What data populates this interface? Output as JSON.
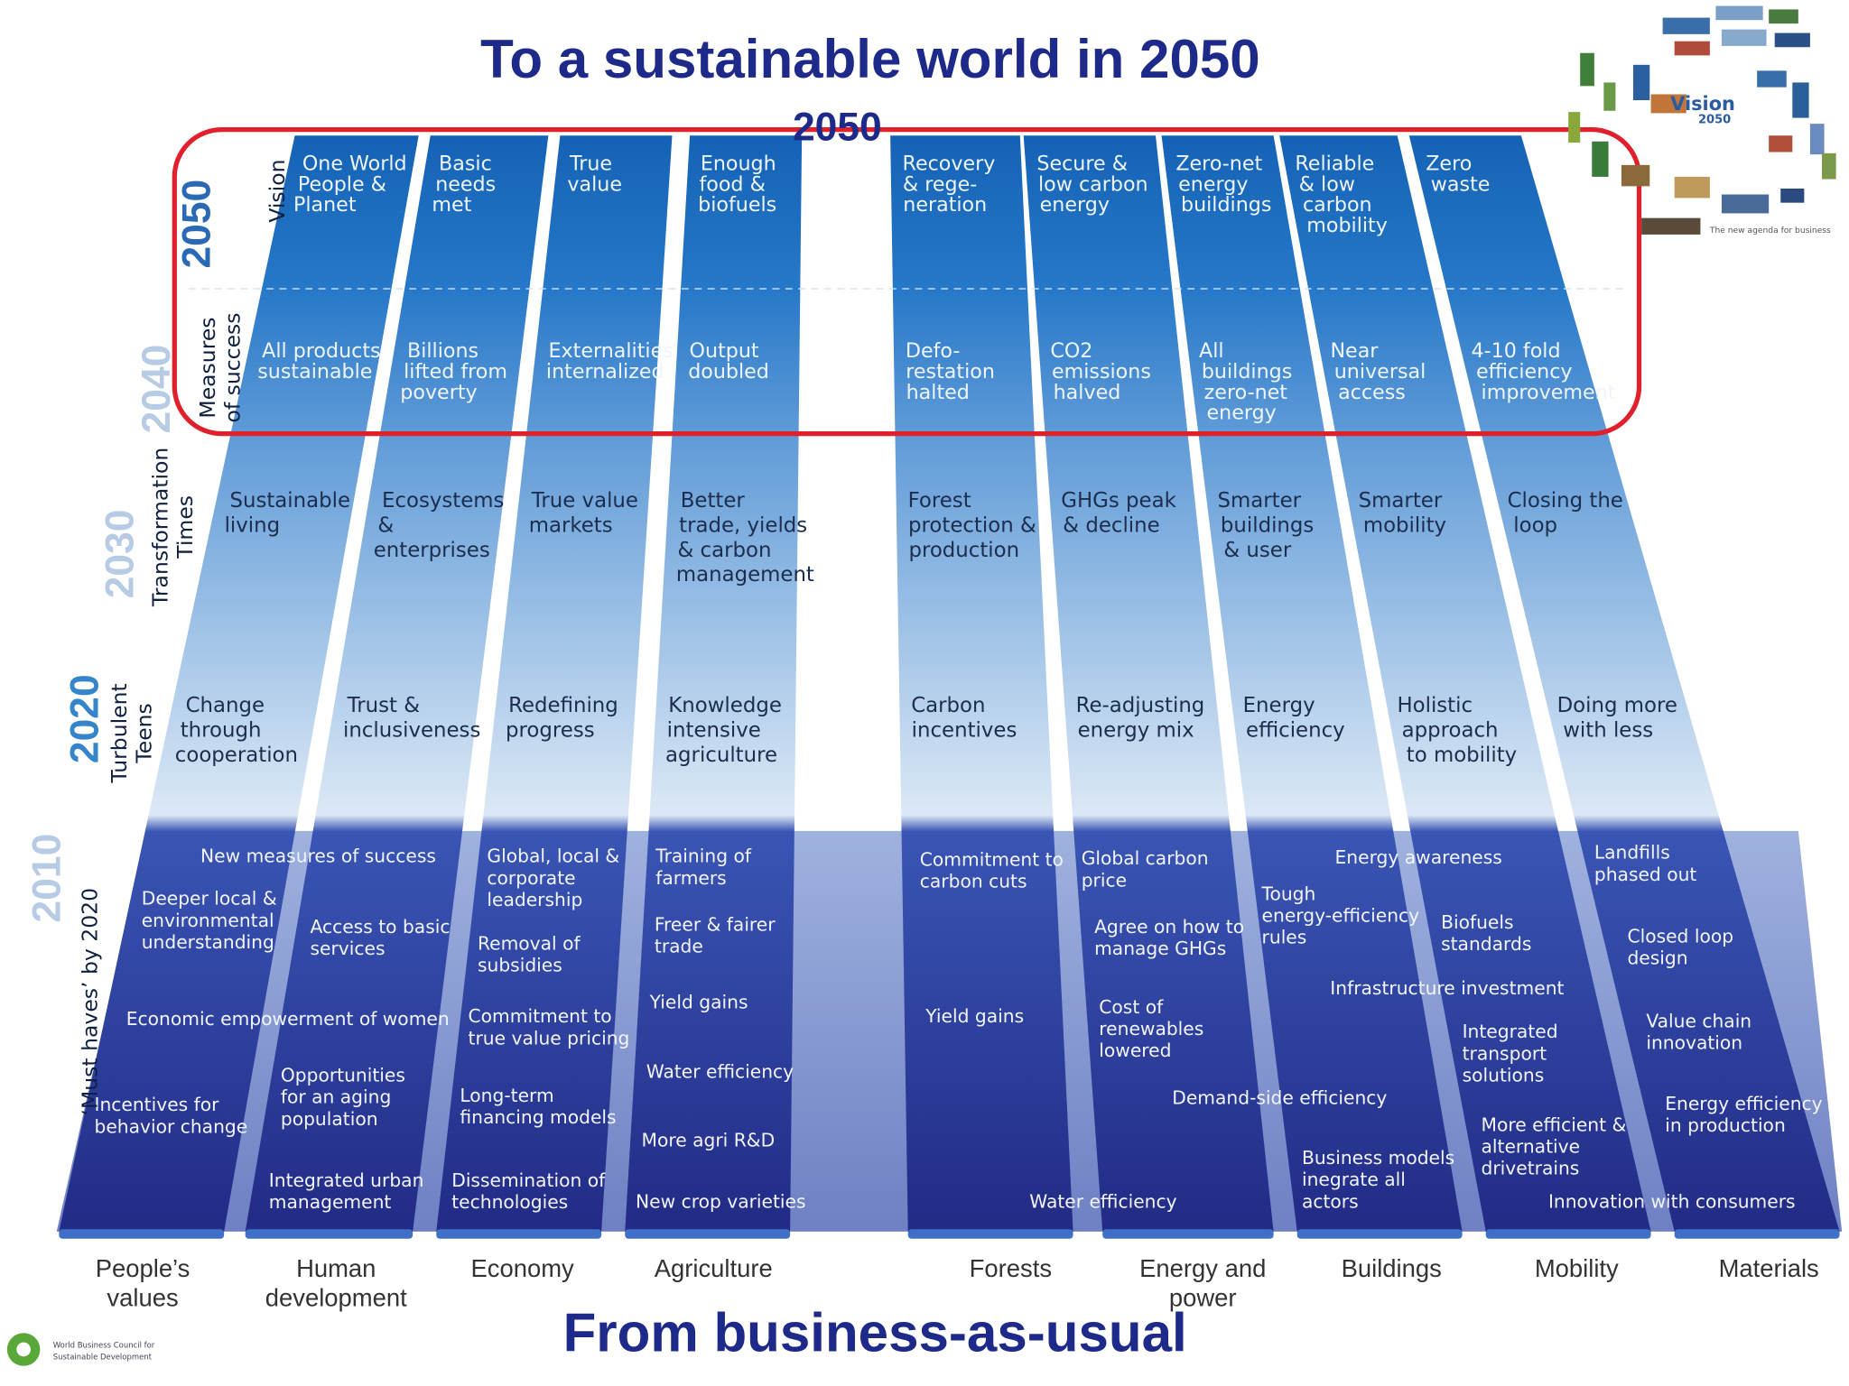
{
  "header": {
    "title": "To a sustainable world in 2050",
    "subtitle": "2050"
  },
  "footer": {
    "title": "From business-as-usual"
  },
  "logo": {
    "title": "Vision",
    "year": "2050",
    "tagline": "The new agenda for business"
  },
  "council_logo": {
    "lines": [
      "World Business Council for",
      "Sustainable Development"
    ]
  },
  "rows": [
    {
      "year": "2050",
      "label": [
        "Vision"
      ]
    },
    {
      "year": "2040",
      "label": [
        "Measures",
        "of success"
      ]
    },
    {
      "year": "2030",
      "label": [
        "Transformation",
        "Times"
      ]
    },
    {
      "year": "2020",
      "label": [
        "Turbulent",
        "Teens"
      ]
    },
    {
      "year": "2010",
      "label": [
        "‘Must haves’ by 2020"
      ]
    }
  ],
  "columns": [
    {
      "name": [
        "People’s",
        "values"
      ],
      "vision": [
        "One World",
        "People &",
        "Planet"
      ],
      "measure": [
        "All products",
        "sustainable"
      ],
      "transformation": [
        "Sustainable",
        "living"
      ],
      "teens": [
        "Change",
        "through",
        "cooperation"
      ]
    },
    {
      "name": [
        "Human",
        "development"
      ],
      "vision": [
        "Basic",
        "needs",
        "met"
      ],
      "measure": [
        "Billions",
        "lifted from",
        "poverty"
      ],
      "transformation": [
        "Ecosystems",
        "&",
        "enterprises"
      ],
      "teens": [
        "Trust &",
        "inclusiveness"
      ]
    },
    {
      "name": [
        "Economy"
      ],
      "vision": [
        "True",
        "value"
      ],
      "measure": [
        "Externalities",
        "internalized"
      ],
      "transformation": [
        "True value",
        "markets"
      ],
      "teens": [
        "Redefining",
        "progress"
      ]
    },
    {
      "name": [
        "Agriculture"
      ],
      "vision": [
        "Enough",
        "food &",
        "biofuels"
      ],
      "measure": [
        "Output",
        "doubled"
      ],
      "transformation": [
        "Better",
        "trade, yields",
        "& carbon",
        "management"
      ],
      "teens": [
        "Knowledge",
        "intensive",
        "agriculture"
      ]
    },
    {
      "name": [
        "Forests"
      ],
      "vision": [
        "Recovery",
        "& rege-",
        "neration"
      ],
      "measure": [
        "Defo-",
        "restation",
        "halted"
      ],
      "transformation": [
        "Forest",
        "protection &",
        "production"
      ],
      "teens": [
        "Carbon",
        "incentives"
      ]
    },
    {
      "name": [
        "Energy and",
        "power"
      ],
      "vision": [
        "Secure &",
        "low carbon",
        "energy"
      ],
      "measure": [
        "CO2",
        "emissions",
        "halved"
      ],
      "transformation": [
        "GHGs peak",
        "& decline"
      ],
      "teens": [
        "Re-adjusting",
        "energy mix"
      ]
    },
    {
      "name": [
        "Buildings"
      ],
      "vision": [
        "Zero-net",
        "energy",
        "buildings"
      ],
      "measure": [
        "All",
        "buildings",
        "zero-net",
        "energy"
      ],
      "transformation": [
        "Smarter",
        "buildings",
        "& user"
      ],
      "teens": [
        "Energy",
        "efficiency"
      ]
    },
    {
      "name": [
        "Mobility"
      ],
      "vision": [
        "Reliable",
        "& low",
        "carbon",
        "mobility"
      ],
      "measure": [
        "Near",
        "universal",
        "access"
      ],
      "transformation": [
        "Smarter",
        "mobility"
      ],
      "teens": [
        "Holistic",
        "approach",
        "to mobility"
      ]
    },
    {
      "name": [
        "Materials"
      ],
      "vision": [
        "Zero",
        "waste"
      ],
      "measure": [
        "4-10 fold",
        "efficiency",
        "improvement"
      ],
      "transformation": [
        "Closing the",
        "loop"
      ],
      "teens": [
        "Doing more",
        "with less"
      ]
    }
  ],
  "must_haves": [
    [
      "New measures of success"
    ],
    [
      "Deeper local &",
      "environmental",
      "understanding"
    ],
    [
      "Access to basic",
      "services"
    ],
    [
      "Economic empowerment of women"
    ],
    [
      "Opportunities",
      "for an aging",
      "population"
    ],
    [
      "Incentives for",
      "behavior change"
    ],
    [
      "Integrated urban",
      "management"
    ],
    [
      "Global, local &",
      "corporate",
      "leadership"
    ],
    [
      "Removal of",
      "subsidies"
    ],
    [
      "Commitment to",
      "true value pricing"
    ],
    [
      "Long-term",
      "financing models"
    ],
    [
      "Dissemination of",
      "technologies"
    ],
    [
      "Training of",
      "farmers"
    ],
    [
      "Freer & fairer",
      "trade"
    ],
    [
      "Yield gains"
    ],
    [
      "Water efficiency"
    ],
    [
      "More agri R&D"
    ],
    [
      "New crop varieties"
    ],
    [
      "Commitment to",
      "carbon cuts"
    ],
    [
      "Yield gains"
    ],
    [
      "Water efficiency"
    ],
    [
      "Global carbon",
      "price"
    ],
    [
      "Agree on how to",
      "manage GHGs"
    ],
    [
      "Cost of",
      "renewables",
      "lowered"
    ],
    [
      "Demand-side efficiency"
    ],
    [
      "Energy awareness"
    ],
    [
      "Tough",
      "energy-efficiency",
      "rules"
    ],
    [
      "Biofuels",
      "standards"
    ],
    [
      "Infrastructure investment"
    ],
    [
      "Integrated",
      "transport",
      "solutions"
    ],
    [
      "Business models",
      "inegrate all",
      "actors"
    ],
    [
      "More efficient &",
      "alternative",
      "drivetrains"
    ],
    [
      "Landfills",
      "phased out"
    ],
    [
      "Closed loop",
      "design"
    ],
    [
      "Value chain",
      "innovation"
    ],
    [
      "Energy efficiency",
      "in production"
    ],
    [
      "Innovation with consumers"
    ]
  ]
}
